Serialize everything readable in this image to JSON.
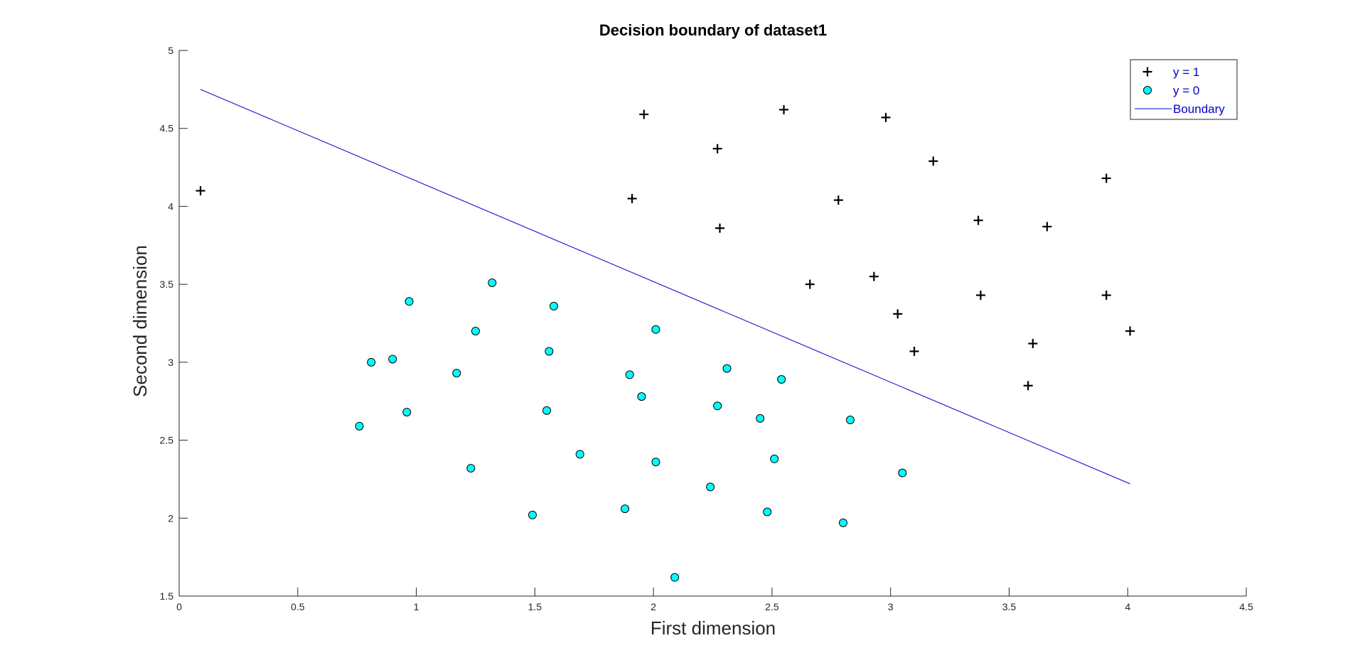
{
  "chart_data": {
    "type": "scatter",
    "title": "Decision boundary of dataset1",
    "xlabel": "First dimension",
    "ylabel": "Second dimension",
    "xlim": [
      0,
      4.5
    ],
    "ylim": [
      1.5,
      5
    ],
    "xticks": [
      0,
      0.5,
      1,
      1.5,
      2,
      2.5,
      3,
      3.5,
      4,
      4.5
    ],
    "yticks": [
      1.5,
      2,
      2.5,
      3,
      3.5,
      4,
      4.5,
      5
    ],
    "xtick_labels": [
      "0",
      "0.5",
      "1",
      "1.5",
      "2",
      "2.5",
      "3",
      "3.5",
      "4",
      "4.5"
    ],
    "ytick_labels": [
      "1.5",
      "2",
      "2.5",
      "3",
      "3.5",
      "4",
      "4.5",
      "5"
    ],
    "grid": false,
    "legend_position": "top-right",
    "colors": {
      "positive_marker": "#000000",
      "negative_fill": "#00ffff",
      "negative_edge": "#000000",
      "boundary": "#0000cc",
      "legend_text": "#0000cc",
      "axis": "#262626"
    },
    "series": [
      {
        "name": "y = 1",
        "marker": "plus",
        "points": [
          [
            0.09,
            4.1
          ],
          [
            1.96,
            4.59
          ],
          [
            2.55,
            4.62
          ],
          [
            2.98,
            4.57
          ],
          [
            2.27,
            4.37
          ],
          [
            3.18,
            4.29
          ],
          [
            3.91,
            4.18
          ],
          [
            1.91,
            4.05
          ],
          [
            2.78,
            4.04
          ],
          [
            2.28,
            3.86
          ],
          [
            3.37,
            3.91
          ],
          [
            3.66,
            3.87
          ],
          [
            2.66,
            3.5
          ],
          [
            2.93,
            3.55
          ],
          [
            3.38,
            3.43
          ],
          [
            3.91,
            3.43
          ],
          [
            3.03,
            3.31
          ],
          [
            3.6,
            3.12
          ],
          [
            4.01,
            3.2
          ],
          [
            3.1,
            3.07
          ],
          [
            3.58,
            2.85
          ]
        ]
      },
      {
        "name": "y = 0",
        "marker": "circle",
        "points": [
          [
            1.32,
            3.51
          ],
          [
            0.97,
            3.39
          ],
          [
            1.58,
            3.36
          ],
          [
            1.25,
            3.2
          ],
          [
            2.01,
            3.21
          ],
          [
            0.81,
            3.0
          ],
          [
            0.9,
            3.02
          ],
          [
            1.17,
            2.93
          ],
          [
            1.56,
            3.07
          ],
          [
            2.31,
            2.96
          ],
          [
            1.9,
            2.92
          ],
          [
            2.54,
            2.89
          ],
          [
            0.96,
            2.68
          ],
          [
            1.55,
            2.69
          ],
          [
            1.95,
            2.78
          ],
          [
            2.27,
            2.72
          ],
          [
            2.45,
            2.64
          ],
          [
            2.83,
            2.63
          ],
          [
            0.76,
            2.59
          ],
          [
            1.69,
            2.41
          ],
          [
            2.01,
            2.36
          ],
          [
            2.51,
            2.38
          ],
          [
            1.23,
            2.32
          ],
          [
            3.05,
            2.29
          ],
          [
            2.24,
            2.2
          ],
          [
            1.49,
            2.02
          ],
          [
            1.88,
            2.06
          ],
          [
            2.48,
            2.04
          ],
          [
            2.8,
            1.97
          ],
          [
            2.09,
            1.62
          ]
        ]
      },
      {
        "name": "Boundary",
        "marker": "line",
        "points": [
          [
            0.09,
            4.75
          ],
          [
            4.01,
            2.22
          ]
        ]
      }
    ]
  }
}
